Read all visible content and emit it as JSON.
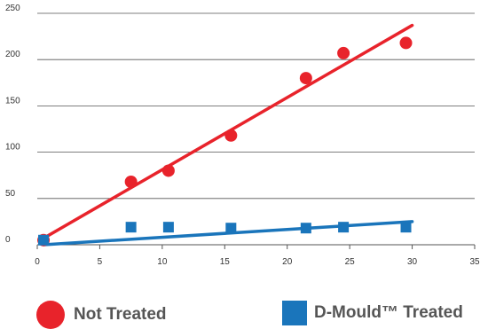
{
  "chart_data": {
    "type": "scatter",
    "xlim": [
      0,
      35
    ],
    "ylim": [
      0,
      250
    ],
    "x_ticks": [
      0,
      5,
      10,
      15,
      20,
      25,
      30,
      35
    ],
    "y_ticks": [
      0,
      50,
      100,
      150,
      200,
      250
    ],
    "grid": "horizontal",
    "legend_position": "bottom",
    "series": [
      {
        "name": "Not Treated",
        "marker": "circle",
        "color": "#e8232b",
        "x": [
          0.5,
          7.5,
          10.5,
          15.5,
          21.5,
          24.5,
          29.5
        ],
        "y": [
          5,
          68,
          80,
          118,
          180,
          207,
          218
        ],
        "trendline": {
          "x": [
            0.5,
            30
          ],
          "y": [
            7,
            237
          ]
        }
      },
      {
        "name": "D-Mould™ Treated",
        "marker": "square",
        "color": "#1a75bb",
        "x": [
          0.5,
          7.5,
          10.5,
          15.5,
          21.5,
          24.5,
          29.5
        ],
        "y": [
          5,
          19,
          19,
          18,
          18,
          19,
          19
        ],
        "trendline": {
          "x": [
            0.5,
            30
          ],
          "y": [
            0,
            25
          ]
        }
      }
    ]
  },
  "legend": [
    {
      "label": "Not Treated",
      "color": "#e8232b",
      "icon": "circle-icon"
    },
    {
      "label": "D-Mould™ Treated",
      "color": "#1a75bb",
      "icon": "square-icon"
    }
  ]
}
